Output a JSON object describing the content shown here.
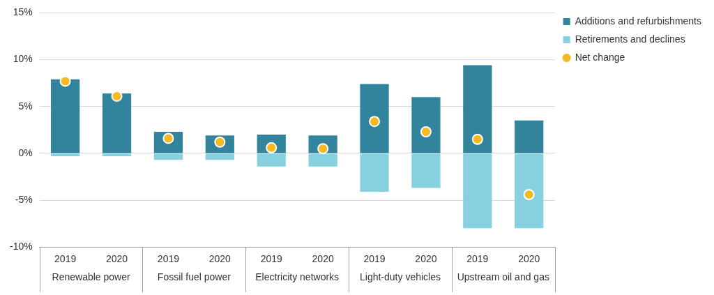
{
  "chart_data": {
    "type": "bar",
    "categories": [
      "2019",
      "2020",
      "2019",
      "2020",
      "2019",
      "2020",
      "2019",
      "2020",
      "2019",
      "2020"
    ],
    "groups": [
      {
        "name": "Renewable power",
        "size": 2
      },
      {
        "name": "Fossil fuel power",
        "size": 2
      },
      {
        "name": "Electricity networks",
        "size": 2
      },
      {
        "name": "Light-duty vehicles",
        "size": 2
      },
      {
        "name": "Upstream oil and gas",
        "size": 2
      }
    ],
    "series": [
      {
        "name": "Additions and refurbishments",
        "type": "bar",
        "color": "#31849b",
        "values": [
          7.9,
          6.4,
          2.3,
          1.9,
          2.0,
          1.9,
          7.4,
          6.0,
          9.4,
          3.5
        ]
      },
      {
        "name": "Retirements and declines",
        "type": "bar",
        "color": "#86d0e0",
        "values": [
          -0.3,
          -0.3,
          -0.7,
          -0.7,
          -1.4,
          -1.4,
          -4.1,
          -3.7,
          -8.0,
          -8.0
        ]
      },
      {
        "name": "Net change",
        "type": "scatter",
        "marker": "circle",
        "color": "#f5b921",
        "values": [
          7.7,
          6.1,
          1.6,
          1.2,
          0.6,
          0.5,
          3.4,
          2.3,
          1.5,
          -4.4
        ]
      }
    ],
    "stacked": true,
    "ylim": [
      -10,
      15
    ],
    "yticks": [
      {
        "value": -10,
        "label": "-10%"
      },
      {
        "value": -5,
        "label": "-5%"
      },
      {
        "value": 0,
        "label": "0%"
      },
      {
        "value": 5,
        "label": "5%"
      },
      {
        "value": 10,
        "label": "10%"
      },
      {
        "value": 15,
        "label": "15%"
      }
    ],
    "grid": true,
    "legend": "top right"
  }
}
